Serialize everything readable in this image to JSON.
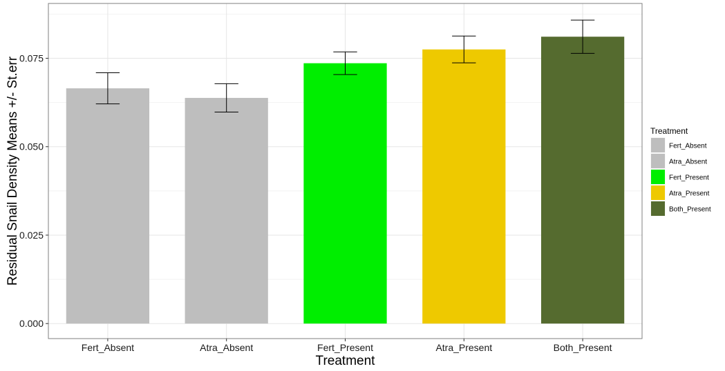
{
  "chart_data": {
    "type": "bar",
    "categories": [
      "Fert_Absent",
      "Atra_Absent",
      "Fert_Present",
      "Atra_Present",
      "Both_Present"
    ],
    "values": [
      0.0665,
      0.0638,
      0.0736,
      0.0775,
      0.0811
    ],
    "errors": [
      0.0044,
      0.004,
      0.0032,
      0.0038,
      0.0047
    ],
    "colors": [
      "#bebebe",
      "#bebebe",
      "#00ee00",
      "#eec900",
      "#556b2f"
    ],
    "title": "",
    "xlabel": "Treatment",
    "ylabel": "Residual Snail Density Means +/- St.err",
    "ylim": [
      -0.00425,
      0.0905
    ],
    "yticks": [
      0.0,
      0.025,
      0.05,
      0.075
    ],
    "ytick_labels": [
      "0.000",
      "0.025",
      "0.050",
      "0.075"
    ],
    "grid": true,
    "legend": {
      "title": "Treatment",
      "placement": "right",
      "entries": [
        "Fert_Absent",
        "Atra_Absent",
        "Fert_Present",
        "Atra_Present",
        "Both_Present"
      ]
    }
  }
}
